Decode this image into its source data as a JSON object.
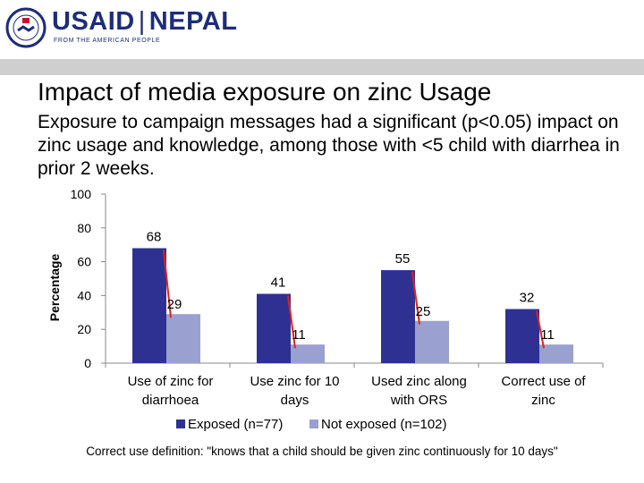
{
  "header": {
    "brand_usaid": "USAID",
    "brand_separator": "|",
    "brand_country": "NEPAL",
    "tagline": "FROM THE AMERICAN PEOPLE"
  },
  "slide": {
    "title": "Impact of media exposure on zinc Usage",
    "subtitle": "Exposure to campaign messages had a significant (p<0.05) impact on zinc usage and knowledge, among those with <5 child with diarrhea in prior 2 weeks.",
    "footnote": "Correct use definition: \"knows that a child should be given zinc continuously for 10 days\""
  },
  "colors": {
    "exposed": "#2e3192",
    "not_exposed": "#9aa0cf",
    "connector": "#e32219"
  },
  "chart_data": {
    "type": "bar",
    "title": "",
    "xlabel": "",
    "ylabel": "Percentage",
    "ylim": [
      0,
      100
    ],
    "yticks": [
      0,
      20,
      40,
      60,
      80,
      100
    ],
    "categories": [
      [
        "Use of zinc for",
        "diarrhoea"
      ],
      [
        "Use zinc for 10",
        "days"
      ],
      [
        "Used zinc along",
        "with ORS"
      ],
      [
        "Correct use of",
        "zinc"
      ]
    ],
    "series": [
      {
        "name": "Exposed (n=77)",
        "values": [
          68,
          41,
          55,
          32
        ]
      },
      {
        "name": "Not exposed (n=102)",
        "values": [
          29,
          11,
          25,
          11
        ]
      }
    ],
    "legend_position": "bottom"
  }
}
